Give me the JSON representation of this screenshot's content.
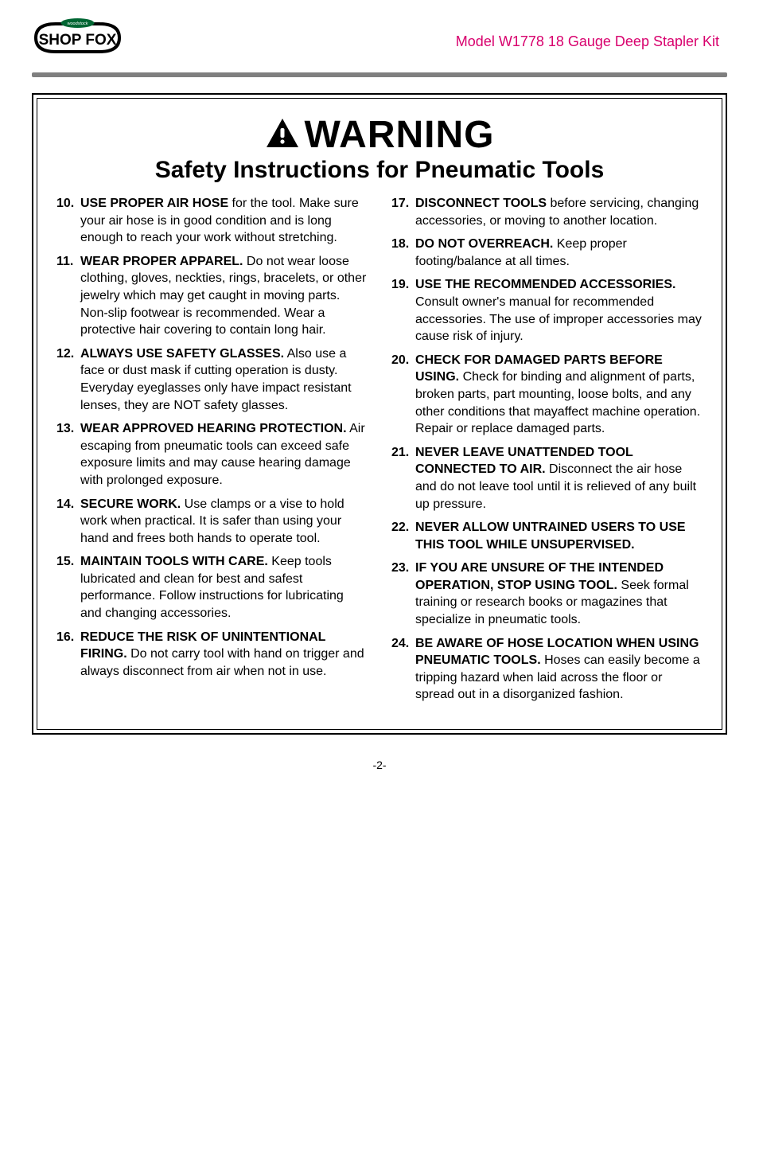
{
  "header": {
    "model_line": "Model W1778 18 Gauge Deep Stapler Kit",
    "logo_text_top": "SHOP FOX",
    "logo_badge_text": "woodstock"
  },
  "warning": {
    "word": "WARNING",
    "subtitle": "Safety Instructions for Pneumatic Tools"
  },
  "colors": {
    "accent": "#d8006d",
    "rule": "#7f7f7f",
    "text": "#000000",
    "background": "#ffffff"
  },
  "typography": {
    "warning_fontsize": 48,
    "subtitle_fontsize": 30,
    "body_fontsize": 16,
    "header_title_fontsize": 18
  },
  "left_items": [
    {
      "num": "10.",
      "lead": "USE PROPER AIR HOSE",
      "rest": " for the tool. Make sure your air hose is in good condition and is long enough to  reach your work without stretching."
    },
    {
      "num": "11.",
      "lead": "WEAR PROPER APPAREL.",
      "rest": " Do not wear loose clothing, gloves, neckties, rings, bracelets, or other jewelry which may get caught in moving parts. Non-slip footwear is recommended. Wear a protective hair covering to contain long hair."
    },
    {
      "num": "12.",
      "lead": "ALWAYS USE SAFETY GLASSES.",
      "rest": " Also use a face or dust mask if cutting operation is dusty. Everyday eyeglasses only have impact resistant lenses, they are NOT safety glasses."
    },
    {
      "num": "13.",
      "lead": "WEAR APPROVED HEARING PROTECTION.",
      "rest": " Air escaping from pneumatic tools can exceed safe exposure limits and may cause hearing damage with prolonged exposure."
    },
    {
      "num": "14.",
      "lead": "SECURE WORK.",
      "rest": " Use clamps or a vise to hold work when practical. It is safer than using your hand and frees both hands to operate tool."
    },
    {
      "num": "15.",
      "lead": "MAINTAIN TOOLS WITH CARE.",
      "rest": " Keep tools lubricated and clean for best and safest performance. Follow instructions for lubricating and changing accessories."
    },
    {
      "num": "16.",
      "lead": "REDUCE THE RISK OF UNINTENTIONAL FIRING.",
      "rest": " Do not carry tool with hand on trigger and always disconnect from air when not in use."
    }
  ],
  "right_items": [
    {
      "num": "17.",
      "lead": "DISCONNECT TOOLS",
      "rest": " before servicing, changing accessories, or moving to another location."
    },
    {
      "num": "18.",
      "lead": "DO NOT OVERREACH.",
      "rest": " Keep proper footing/balance at all times."
    },
    {
      "num": "19.",
      "lead": "USE THE RECOMMENDED ACCESSORIES.",
      "rest": " Consult owner's manual for recommended accessories. The use of improper accessories may cause risk of injury."
    },
    {
      "num": "20.",
      "lead": "CHECK FOR DAMAGED PARTS BEFORE USING.",
      "rest": " Check for binding and alignment of parts, broken parts, part mounting, loose bolts, and any other conditions that mayaffect machine operation. Repair or replace damaged parts."
    },
    {
      "num": "21.",
      "lead": "NEVER LEAVE UNATTENDED TOOL CONNECTED TO AIR.",
      "rest": " Disconnect the air hose and do not leave tool until it is relieved of any built up pressure."
    },
    {
      "num": "22.",
      "lead": "NEVER ALLOW UNTRAINED USERS TO USE THIS TOOL WHILE UNSUPERVISED.",
      "rest": ""
    },
    {
      "num": "23.",
      "lead": "IF YOU ARE UNSURE OF THE INTENDED OPERATION, STOP USING TOOL.",
      "rest": " Seek formal training or research books or magazines that specialize in pneumatic tools."
    },
    {
      "num": "24.",
      "lead": "BE AWARE OF HOSE LOCATION WHEN USING PNEUMATIC TOOLS.",
      "rest": " Hoses can easily become a tripping hazard when laid across the floor or spread out in a disorganized fashion."
    }
  ],
  "pagenum": "-2-"
}
